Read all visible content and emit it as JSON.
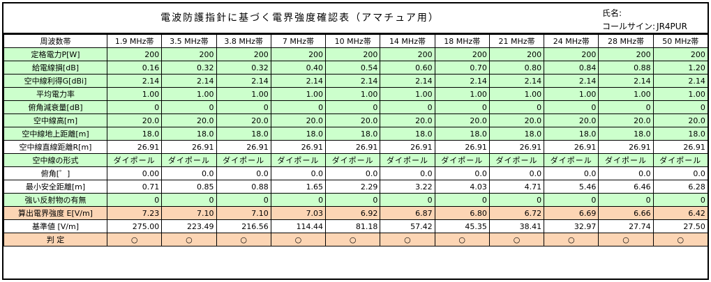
{
  "header": {
    "title": "電波防護指針に基づく電界強度確認表（アマチュア用）",
    "name_label": "氏名:",
    "callsign_label": "コールサイン:",
    "callsign_value": "JR4PUR"
  },
  "bands": [
    "1.9 MHz帯",
    "3.5 MHz帯",
    "3.8 MHz帯",
    "7 MHz帯",
    "10 MHz帯",
    "14 MHz帯",
    "18 MHz帯",
    "21 MHz帯",
    "24 MHz帯",
    "28 MHz帯",
    "50 MHz帯"
  ],
  "header_label": "周波数帯",
  "rows": {
    "power": {
      "label": "定格電力P[W]",
      "values": [
        "200",
        "200",
        "200",
        "200",
        "200",
        "200",
        "200",
        "200",
        "200",
        "200",
        "200"
      ]
    },
    "feeder_loss": {
      "label": "給電線損[dB]",
      "values": [
        "0.16",
        "0.32",
        "0.32",
        "0.40",
        "0.54",
        "0.60",
        "0.70",
        "0.80",
        "0.84",
        "0.88",
        "1.20"
      ]
    },
    "antenna_gain": {
      "label": "空中線利得G[dBi]",
      "values": [
        "2.14",
        "2.14",
        "2.14",
        "2.14",
        "2.14",
        "2.14",
        "2.14",
        "2.14",
        "2.14",
        "2.14",
        "2.14"
      ]
    },
    "avg_power_ratio": {
      "label": "平均電力率",
      "values": [
        "1.00",
        "1.00",
        "1.00",
        "1.00",
        "1.00",
        "1.00",
        "1.00",
        "1.00",
        "1.00",
        "1.00",
        "1.00"
      ]
    },
    "depression_atten": {
      "label": "俯角減衰量[dB]",
      "values": [
        "0",
        "0",
        "0",
        "0",
        "0",
        "0",
        "0",
        "0",
        "0",
        "0",
        "0"
      ]
    },
    "antenna_height": {
      "label": "空中線高[m]",
      "values": [
        "20.0",
        "20.0",
        "20.0",
        "20.0",
        "20.0",
        "20.0",
        "20.0",
        "20.0",
        "20.0",
        "20.0",
        "20.0"
      ]
    },
    "ground_distance": {
      "label": "空中線地上距離[m]",
      "values": [
        "18.0",
        "18.0",
        "18.0",
        "18.0",
        "18.0",
        "18.0",
        "18.0",
        "18.0",
        "18.0",
        "18.0",
        "18.0"
      ]
    },
    "direct_distance": {
      "label": "空中線直線距離R[m]",
      "values": [
        "26.91",
        "26.91",
        "26.91",
        "26.91",
        "26.91",
        "26.91",
        "26.91",
        "26.91",
        "26.91",
        "26.91",
        "26.91"
      ]
    },
    "antenna_type": {
      "label": "空中線の形式",
      "values": [
        "ダイポール",
        "ダイポール",
        "ダイポール",
        "ダイポール",
        "ダイポール",
        "ダイポール",
        "ダイポール",
        "ダイポール",
        "ダイポール",
        "ダイポール",
        "ダイポール"
      ]
    },
    "depression_angle": {
      "label": "俯角[゜]",
      "values": [
        "0.00",
        "0.0",
        "0.0",
        "0.0",
        "0.0",
        "0.0",
        "0.0",
        "0.0",
        "0.0",
        "0.0",
        "0.0"
      ]
    },
    "min_safe_distance": {
      "label": "最小安全距離[m]",
      "values": [
        "0.71",
        "0.85",
        "0.88",
        "1.65",
        "2.29",
        "3.22",
        "4.03",
        "4.71",
        "5.46",
        "6.46",
        "6.28"
      ]
    },
    "reflector": {
      "label": "強い反射物の有無",
      "values": [
        "0",
        "0",
        "0",
        "0",
        "0",
        "0",
        "0",
        "0",
        "0",
        "0",
        "0"
      ]
    },
    "field_strength": {
      "label": "算出電界強度 E[V/m]",
      "values": [
        "7.23",
        "7.10",
        "7.10",
        "7.03",
        "6.92",
        "6.87",
        "6.80",
        "6.72",
        "6.69",
        "6.66",
        "6.42"
      ]
    },
    "reference": {
      "label": "基準値 [V/m]",
      "values": [
        "275.00",
        "223.49",
        "216.56",
        "114.44",
        "81.18",
        "57.42",
        "45.35",
        "38.41",
        "32.97",
        "27.74",
        "27.50"
      ]
    },
    "judgement": {
      "label": "判 定",
      "values": [
        "○",
        "○",
        "○",
        "○",
        "○",
        "○",
        "○",
        "○",
        "○",
        "○",
        "○"
      ]
    }
  }
}
